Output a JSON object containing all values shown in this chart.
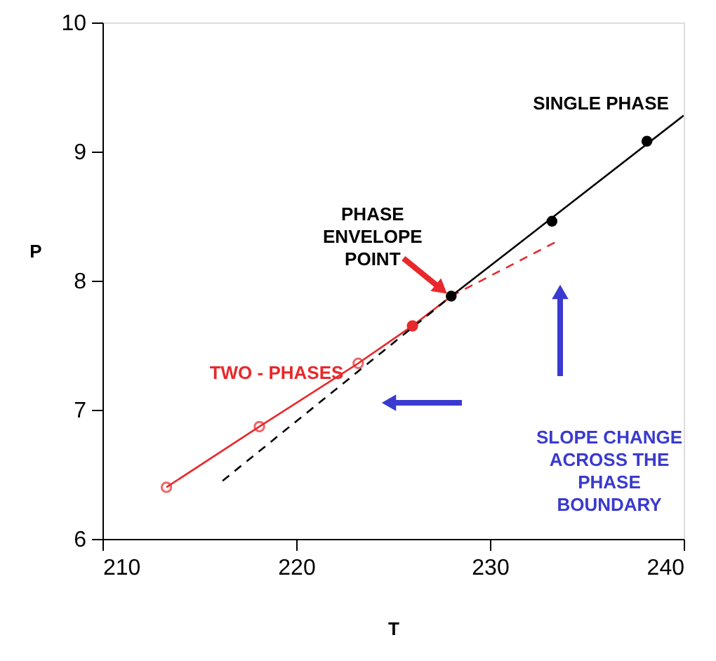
{
  "chart_data": {
    "type": "line",
    "xlabel": "T",
    "ylabel": "P",
    "xlim": [
      210,
      240
    ],
    "xticks": [
      210,
      220,
      230,
      240
    ],
    "ylim": [
      6,
      10
    ],
    "yticks": [
      6,
      7,
      8,
      9,
      10
    ],
    "grid": false,
    "series": [
      {
        "color": "#e8282b",
        "line_style": "solid",
        "marker": "circle",
        "x": [
          213.3,
          218.1,
          223.2,
          226.0
        ],
        "values": [
          6.4,
          6.87,
          7.36,
          7.65
        ]
      },
      {
        "color": "#e8282b",
        "line_style": "solid",
        "marker": "none",
        "x": [
          226.0,
          228.0
        ],
        "values": [
          7.65,
          7.88
        ]
      },
      {
        "color": "#e8282b",
        "line_style": "dashed",
        "marker": "none",
        "x": [
          228.0,
          233.4
        ],
        "values": [
          7.88,
          8.3
        ]
      },
      {
        "color": "#000000",
        "line_style": "dashed",
        "marker": "none",
        "x": [
          216.2,
          228.0
        ],
        "values": [
          6.45,
          7.88
        ]
      },
      {
        "color": "#000000",
        "line_style": "solid",
        "marker": "none",
        "x": [
          228.0,
          240.0
        ],
        "values": [
          7.88,
          9.28
        ]
      },
      {
        "type": "scatter",
        "color": "#e8282b",
        "x": [
          226.0
        ],
        "values": [
          7.65
        ]
      },
      {
        "type": "scatter",
        "color": "#000000",
        "x": [
          228.0,
          233.2,
          238.1
        ],
        "values": [
          7.88,
          8.46,
          9.08
        ]
      }
    ],
    "annotations": [
      "SINGLE PHASE",
      {
        "text": "PHASE\nENVELOPE\nPOINT",
        "x": 228.0,
        "y": 7.88
      },
      "TWO - PHASES",
      "SLOPE CHANGE\nACROSS THE\nPHASE\nBOUNDARY"
    ]
  }
}
